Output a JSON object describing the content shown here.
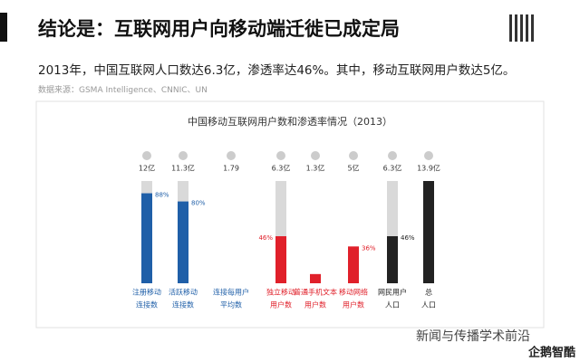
{
  "header": {
    "title": "结论是：互联网用户向移动端迁徙已成定局",
    "subtitle": "2013年，中国互联网人口数达6.3亿，渗透率达46%。其中，移动互联网用户数达5亿。",
    "source": "数据来源：GSMA Intelligence、CNNIC、UN"
  },
  "chart": {
    "title": "中国移动互联网用户数和渗透率情况（2013）",
    "ylim": [
      0,
      100
    ],
    "columns": [
      {
        "top": "12亿",
        "pct": 88,
        "pct_label": "88%",
        "color": "#1f5fa8",
        "background": "#d9d9d9",
        "label": [
          "注册移动",
          "连接数"
        ]
      },
      {
        "top": "11.3亿",
        "pct": 80,
        "pct_label": "80%",
        "color": "#1f5fa8",
        "background": "#d9d9d9",
        "label": [
          "活跃移动",
          "连接数"
        ]
      },
      {
        "top": "1.79",
        "label": [
          "连接每用户",
          "平均数"
        ]
      },
      {
        "top": "6.3亿",
        "pct": 46,
        "pct_label": "46%",
        "color": "#e0202a",
        "background": "#d9d9d9",
        "label": [
          "独立移动",
          "用户数"
        ]
      },
      {
        "top": "1.3亿",
        "pct": 9,
        "color": "#e0202a",
        "label": [
          "普通手机文本",
          "用户数"
        ]
      },
      {
        "top": "5亿",
        "pct": 36,
        "pct_label": "36%",
        "color": "#e0202a",
        "label": [
          "移动网络",
          "用户数"
        ]
      },
      {
        "top": "6.3亿",
        "pct": 46,
        "pct_label": "46%",
        "color": "#222222",
        "background": "#d9d9d9",
        "label": [
          "网民用户",
          "人口"
        ]
      },
      {
        "top": "13.9亿",
        "pct": 100,
        "color": "#222222",
        "label": [
          "总",
          "人口"
        ]
      }
    ]
  },
  "footer": {
    "watermark": "新闻与传播学术前沿",
    "brand": "企鹅智酷"
  }
}
